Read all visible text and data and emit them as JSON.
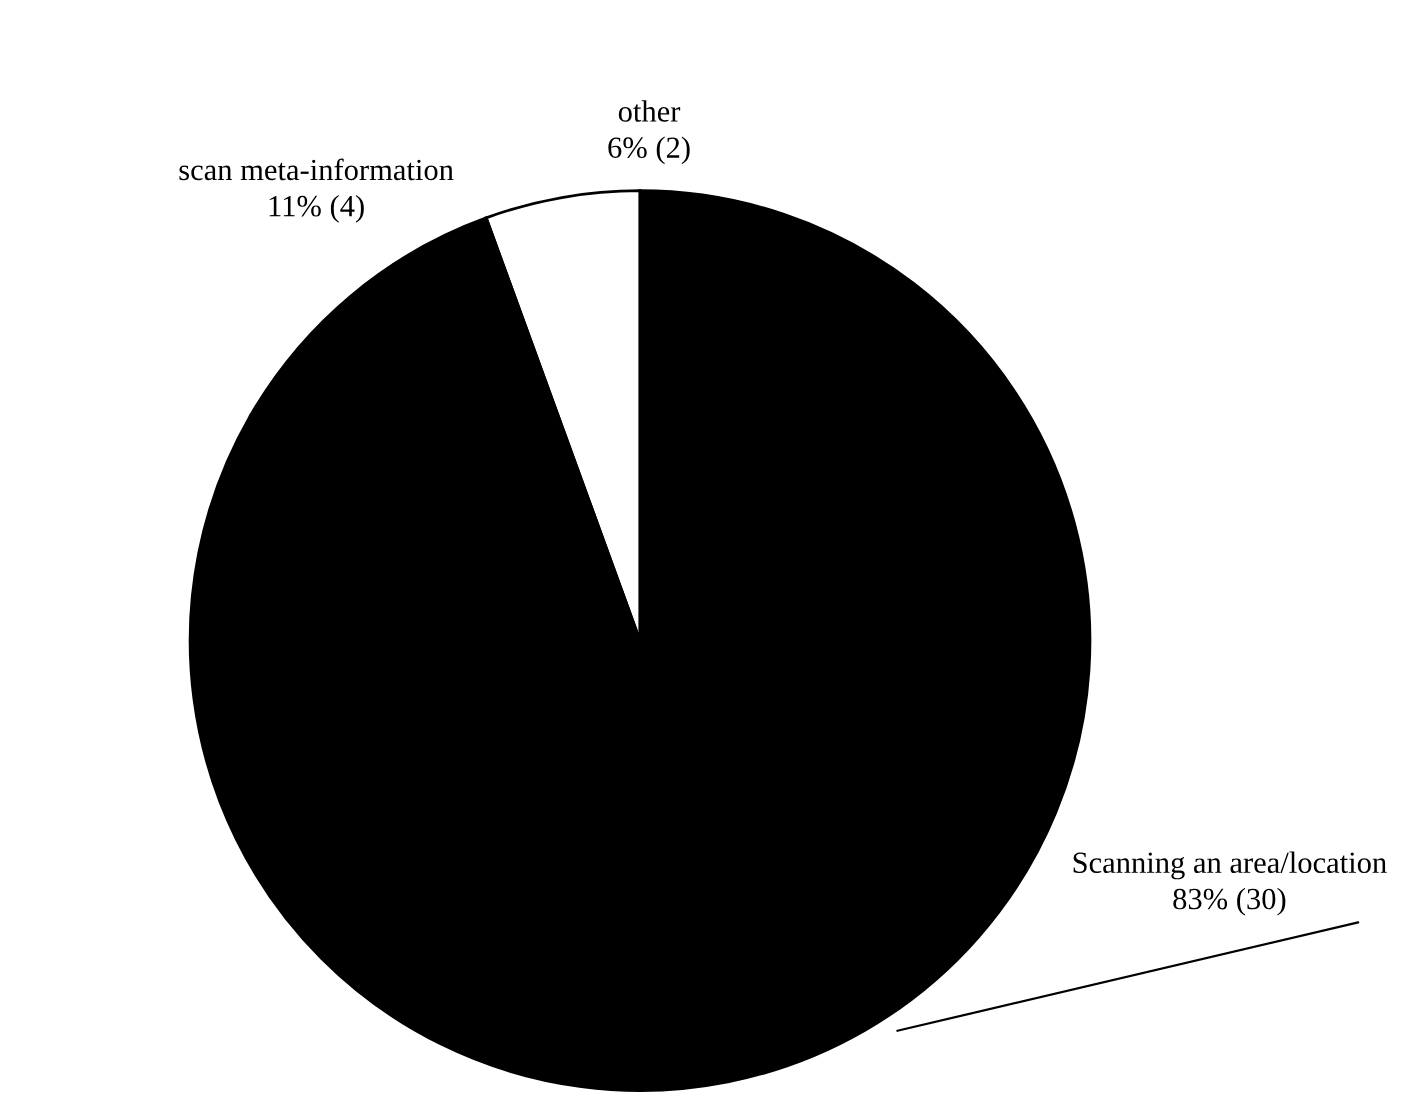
{
  "chart_data": {
    "type": "pie",
    "categories": [
      "other",
      "scan meta-information",
      "Scanning an area/location"
    ],
    "values": [
      2,
      4,
      30
    ],
    "value_labels": [
      "6% (2)",
      "11% (4)",
      "83% (30)"
    ],
    "colors": [
      "#ffffff",
      "#000000",
      "#000000"
    ]
  }
}
